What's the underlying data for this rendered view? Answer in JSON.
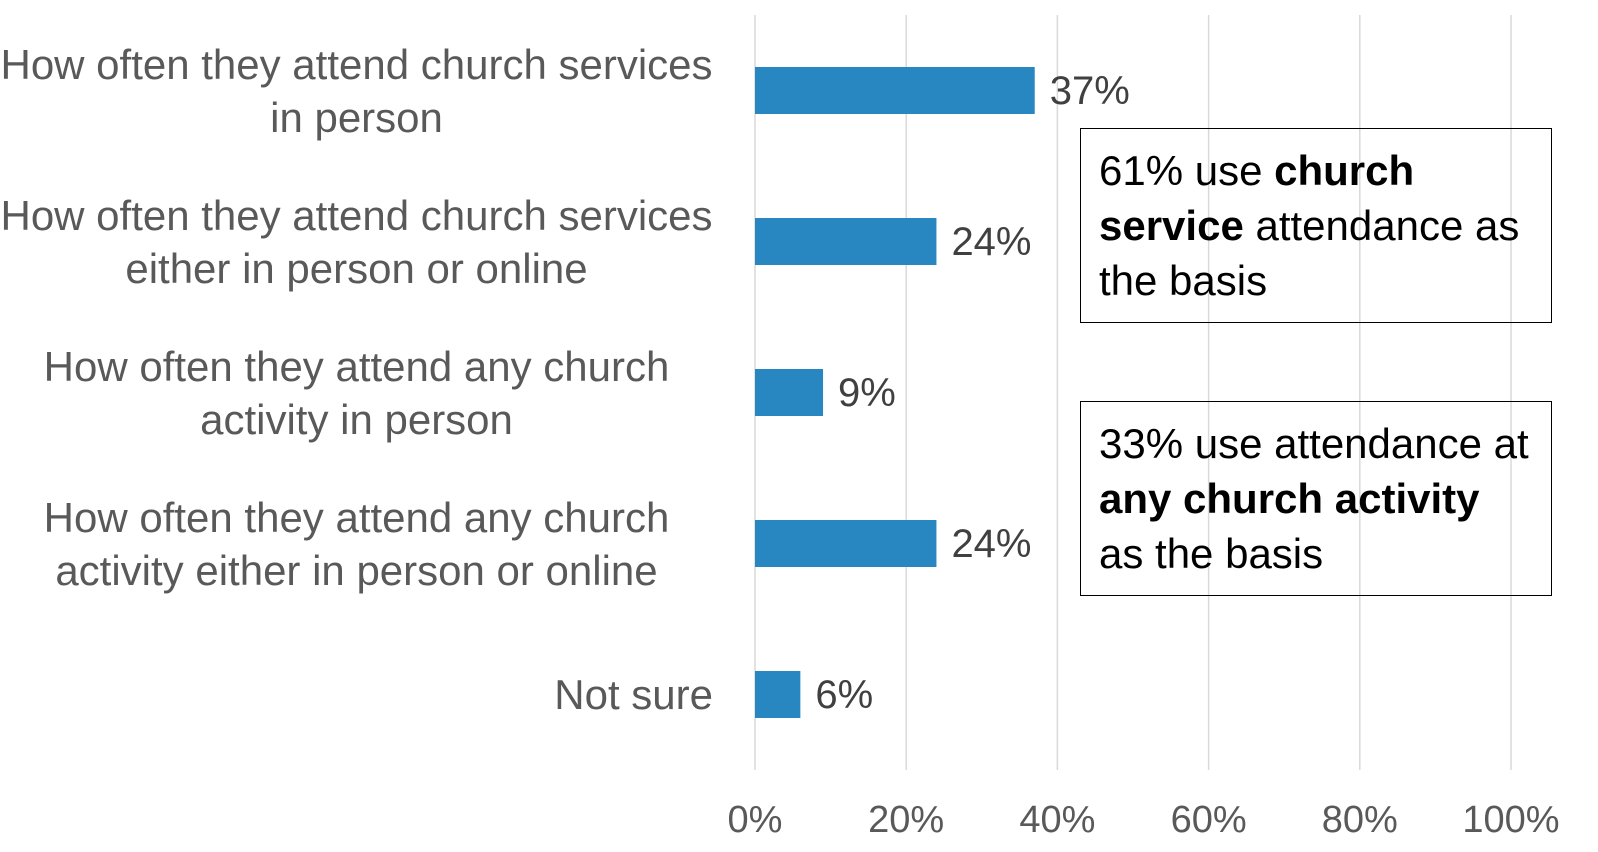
{
  "chart_data": {
    "type": "bar",
    "orientation": "horizontal",
    "categories": [
      "How often they attend church services in person",
      "How often they attend church services either in person or online",
      "How often they attend any church activity in person",
      "How often they attend any church activity either in person or online",
      "Not sure"
    ],
    "values": [
      37,
      24,
      9,
      24,
      6
    ],
    "value_labels": [
      "37%",
      "24%",
      "9%",
      "24%",
      "6%"
    ],
    "color": "#2886c1",
    "xlim": [
      0,
      100
    ],
    "xticks": [
      {
        "value": 0,
        "label": "0%"
      },
      {
        "value": 20,
        "label": "20%"
      },
      {
        "value": 40,
        "label": "40%"
      },
      {
        "value": 60,
        "label": "60%"
      },
      {
        "value": 80,
        "label": "80%"
      },
      {
        "value": 100,
        "label": "100%"
      }
    ],
    "grid": true,
    "annotations": [
      {
        "parts": [
          {
            "text": "61% use "
          },
          {
            "text": "church service",
            "bold": true
          },
          {
            "text": " attendance as the basis"
          }
        ]
      },
      {
        "parts": [
          {
            "text": "33% use attendance at "
          },
          {
            "text": "any church activity",
            "bold": true
          },
          {
            "text": " as the basis"
          }
        ]
      }
    ]
  }
}
